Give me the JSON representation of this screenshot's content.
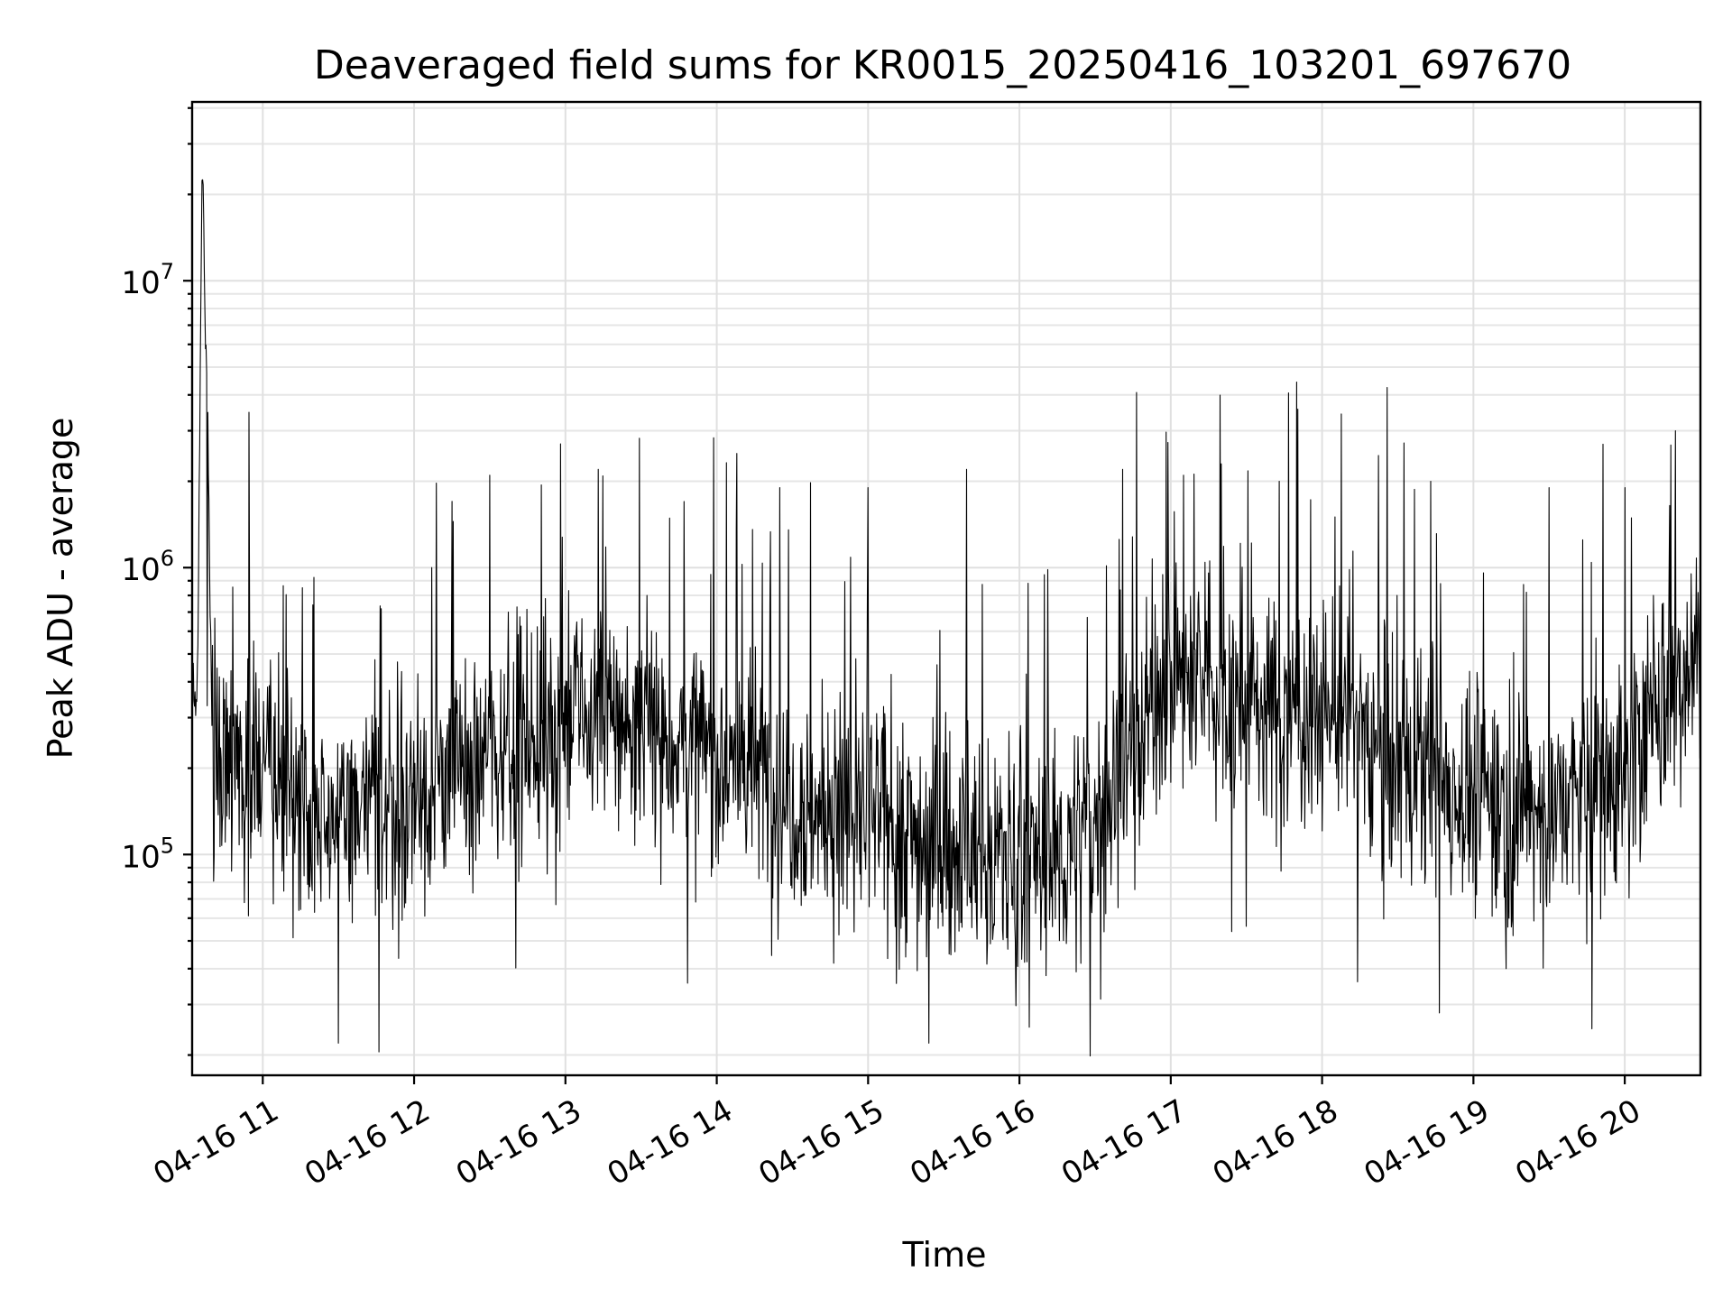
{
  "chart_data": {
    "type": "line",
    "title": "Deaveraged field sums for KR0015_20250416_103201_697670",
    "xlabel": "Time",
    "ylabel": "Peak ADU - average",
    "yscale": "log",
    "ylim": [
      17000,
      42000000
    ],
    "xlim": [
      "2025-04-16T10:32",
      "2025-04-16T20:30"
    ],
    "grid": true,
    "legend": "none",
    "line_color": "#000000",
    "x_ticks": [
      {
        "time": "2025-04-16T11:00",
        "label": "04-16 11"
      },
      {
        "time": "2025-04-16T12:00",
        "label": "04-16 12"
      },
      {
        "time": "2025-04-16T13:00",
        "label": "04-16 13"
      },
      {
        "time": "2025-04-16T14:00",
        "label": "04-16 14"
      },
      {
        "time": "2025-04-16T15:00",
        "label": "04-16 15"
      },
      {
        "time": "2025-04-16T16:00",
        "label": "04-16 16"
      },
      {
        "time": "2025-04-16T17:00",
        "label": "04-16 17"
      },
      {
        "time": "2025-04-16T18:00",
        "label": "04-16 18"
      },
      {
        "time": "2025-04-16T19:00",
        "label": "04-16 19"
      },
      {
        "time": "2025-04-16T20:00",
        "label": "04-16 20"
      }
    ],
    "y_ticks": [
      {
        "value": 100000,
        "base": "10",
        "exp": "5"
      },
      {
        "value": 1000000,
        "base": "10",
        "exp": "6"
      },
      {
        "value": 10000000,
        "base": "10",
        "exp": "7"
      }
    ],
    "series": [
      {
        "x": [
          "2025-04-16T10:32",
          "2025-04-16T10:34",
          "2025-04-16T10:36",
          "2025-04-16T10:38",
          "2025-04-16T10:40",
          "2025-04-16T10:45",
          "2025-04-16T11:00",
          "2025-04-16T11:15",
          "2025-04-16T11:30",
          "2025-04-16T11:45",
          "2025-04-16T12:00",
          "2025-04-16T12:15",
          "2025-04-16T12:30",
          "2025-04-16T12:45",
          "2025-04-16T13:00",
          "2025-04-16T13:15",
          "2025-04-16T13:30",
          "2025-04-16T13:45",
          "2025-04-16T14:00",
          "2025-04-16T14:15",
          "2025-04-16T14:30",
          "2025-04-16T14:45",
          "2025-04-16T15:00",
          "2025-04-16T15:15",
          "2025-04-16T15:30",
          "2025-04-16T15:45",
          "2025-04-16T16:00",
          "2025-04-16T16:15",
          "2025-04-16T16:30",
          "2025-04-16T16:45",
          "2025-04-16T17:00",
          "2025-04-16T17:15",
          "2025-04-16T17:30",
          "2025-04-16T17:45",
          "2025-04-16T18:00",
          "2025-04-16T18:15",
          "2025-04-16T18:30",
          "2025-04-16T18:45",
          "2025-04-16T19:00",
          "2025-04-16T19:15",
          "2025-04-16T19:30",
          "2025-04-16T19:45",
          "2025-04-16T20:00",
          "2025-04-16T20:15",
          "2025-04-16T20:30"
        ],
        "y": [
          400000,
          300000,
          28000000,
          3700000,
          250000,
          230000,
          200000,
          160000,
          140000,
          150000,
          160000,
          190000,
          240000,
          260000,
          290000,
          300000,
          280000,
          240000,
          220000,
          200000,
          160000,
          130000,
          140000,
          120000,
          105000,
          100000,
          100000,
          95000,
          130000,
          260000,
          420000,
          390000,
          330000,
          310000,
          330000,
          280000,
          200000,
          180000,
          160000,
          150000,
          140000,
          170000,
          200000,
          330000,
          600000
        ]
      },
      {
        "name_hidden": "",
        "x": [
          "2025-04-16T10:38",
          "2025-04-16T11:30",
          "2025-04-16T11:46",
          "2025-04-16T12:07",
          "2025-04-16T12:30",
          "2025-04-16T12:58",
          "2025-04-16T13:13",
          "2025-04-16T13:47",
          "2025-04-16T14:08",
          "2025-04-16T14:25",
          "2025-04-16T15:00",
          "2025-04-16T15:24",
          "2025-04-16T15:39",
          "2025-04-16T16:04",
          "2025-04-16T16:41",
          "2025-04-16T17:05",
          "2025-04-16T17:20",
          "2025-04-16T17:43",
          "2025-04-16T18:14",
          "2025-04-16T18:43",
          "2025-04-16T19:13",
          "2025-04-16T19:30",
          "2025-04-16T20:00",
          "2025-04-16T20:20"
        ],
        "y": [
          330000,
          22000,
          20500,
          1000000,
          2100000,
          2700000,
          2200000,
          1700000,
          2500000,
          1900000,
          1900000,
          22000,
          2200000,
          25000,
          2200000,
          2100000,
          2300000,
          2000000,
          36000,
          2000000,
          40000,
          1900000,
          1900000,
          3000000
        ]
      }
    ]
  }
}
